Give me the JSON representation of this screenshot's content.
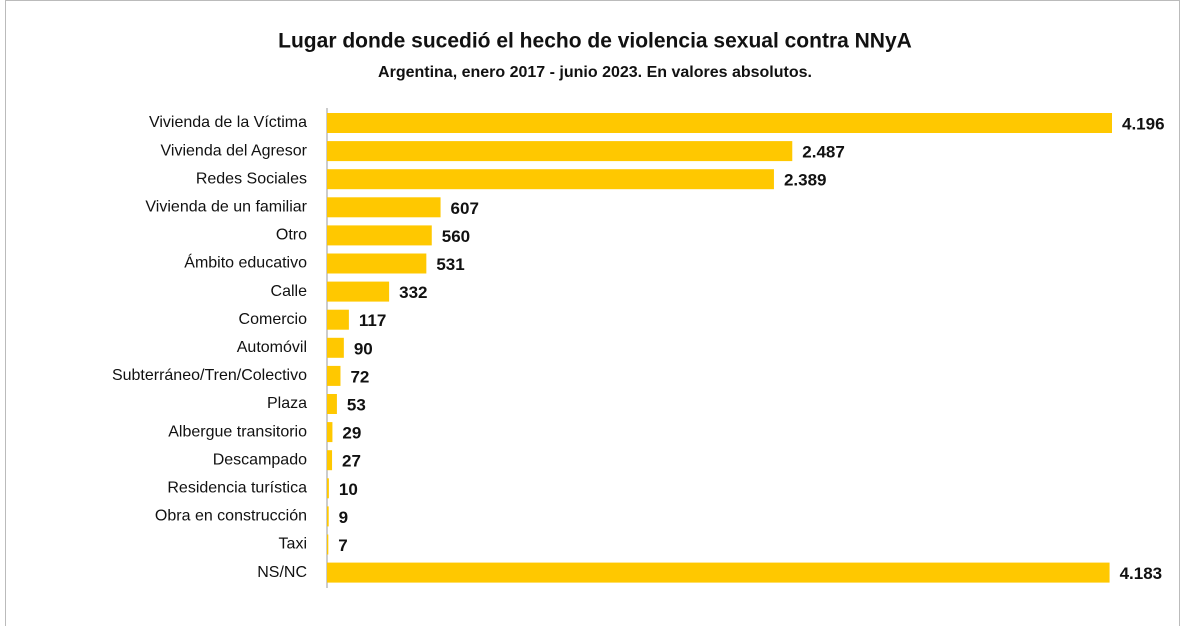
{
  "chart_data": {
    "type": "bar",
    "orientation": "horizontal",
    "title": "Lugar donde sucedió el hecho de violencia sexual contra NNyA",
    "subtitle": "Argentina, enero 2017 -  junio 2023. En valores absolutos.",
    "categories": [
      "Vivienda de la Víctima",
      "Vivienda del Agresor",
      "Redes Sociales",
      "Vivienda de un familiar",
      "Otro",
      "Ámbito educativo",
      "Calle",
      "Comercio",
      "Automóvil",
      "Subterráneo/Tren/Colectivo",
      "Plaza",
      "Albergue transitorio",
      "Descampado",
      "Residencia turística",
      "Obra en construcción",
      "Taxi",
      "NS/NC"
    ],
    "values": [
      4196,
      2487,
      2389,
      607,
      560,
      531,
      332,
      117,
      90,
      72,
      53,
      29,
      27,
      10,
      9,
      7,
      4183
    ],
    "value_labels": [
      "4.196",
      "2.487",
      "2.389",
      "607",
      "560",
      "531",
      "332",
      "117",
      "90",
      "72",
      "53",
      "29",
      "27",
      "10",
      "9",
      "7",
      "4.183"
    ],
    "color": "#ffc800"
  }
}
